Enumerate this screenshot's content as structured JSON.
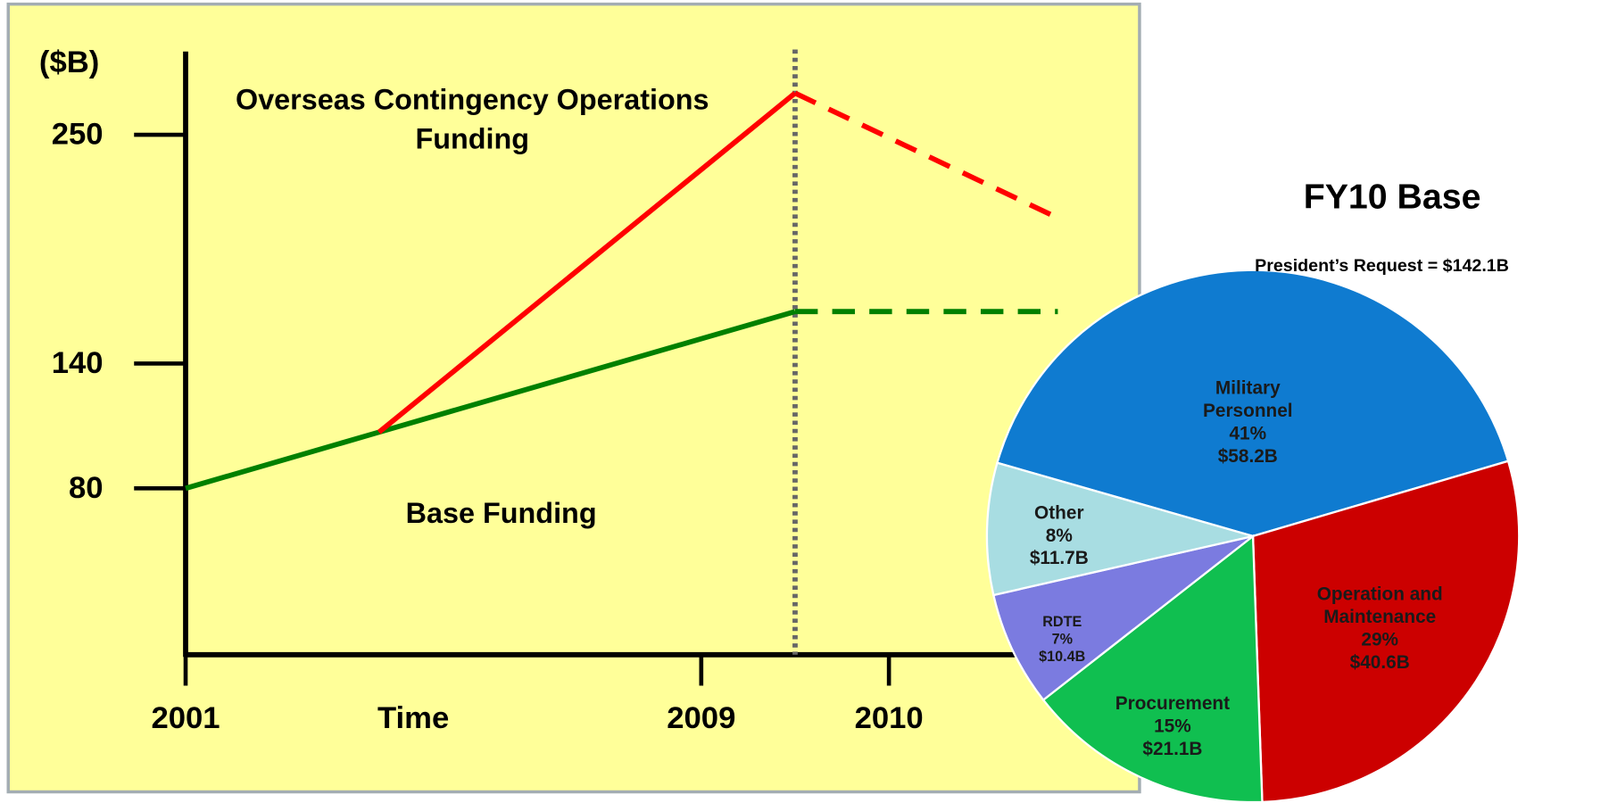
{
  "chart_data": [
    {
      "type": "line",
      "ylabel": "($B)",
      "xlabel": "Time",
      "ylim": [
        0,
        290
      ],
      "yticks": [
        80,
        140,
        250
      ],
      "xlim": [
        2001,
        2011
      ],
      "xticks": [
        2001,
        2009,
        2010
      ],
      "divider_x": 2009.5,
      "series": [
        {
          "name": "Base Funding",
          "color": "#008000",
          "x": [
            2001,
            2004,
            2009.5,
            2010.9
          ],
          "values": [
            80,
            107,
            165,
            165
          ]
        },
        {
          "name": "Overseas Contingency Operations Funding",
          "color": "#ff0000",
          "x": [
            2004,
            2009.5,
            2010.9
          ],
          "values": [
            107,
            270,
            210
          ]
        }
      ]
    },
    {
      "type": "pie",
      "title": "FY10 Base",
      "subtitle": "President’s Request = $142.1B",
      "categories": [
        "Military Personnel",
        "Operation and Maintenance",
        "Procurement",
        "RDTE",
        "Other"
      ],
      "values": [
        41,
        29,
        15,
        7,
        8
      ],
      "value_labels": [
        "41%",
        "29%",
        "15%",
        "7%",
        "8%"
      ],
      "amounts": [
        58.2,
        40.6,
        21.1,
        10.4,
        11.7
      ],
      "amount_labels": [
        "$58.2B",
        "$40.6B",
        "$21.1B",
        "$10.4B",
        "$11.7B"
      ],
      "colors": [
        "#0f7bd0",
        "#cc0000",
        "#10bf50",
        "#7b7be0",
        "#a8dde2"
      ]
    }
  ]
}
